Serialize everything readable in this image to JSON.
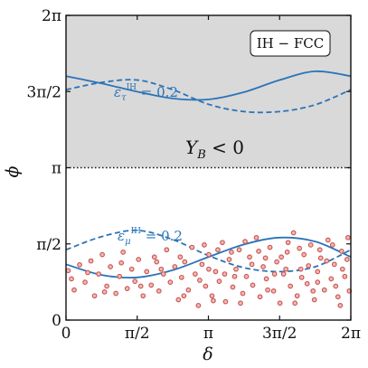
{
  "chart_data": {
    "type": "scatter",
    "title": "",
    "xlabel": "δ",
    "ylabel": "ϕ",
    "xlim": [
      0,
      6.2832
    ],
    "ylim": [
      0,
      6.2832
    ],
    "x_ticks": [
      {
        "value": 0,
        "label": "0"
      },
      {
        "value": 1.5708,
        "label": "π/2"
      },
      {
        "value": 3.1416,
        "label": "π"
      },
      {
        "value": 4.7124,
        "label": "3π/2"
      },
      {
        "value": 6.2832,
        "label": "2π"
      }
    ],
    "y_ticks": [
      {
        "value": 0,
        "label": "0"
      },
      {
        "value": 1.5708,
        "label": "π/2"
      },
      {
        "value": 3.1416,
        "label": "π"
      },
      {
        "value": 4.7124,
        "label": "3π/2"
      },
      {
        "value": 6.2832,
        "label": "2π"
      }
    ],
    "legend_box": "IH − FCC",
    "region_label": "Y_B < 0",
    "shaded_region": {
      "y_from": 3.1416,
      "y_to": 6.2832,
      "color": "#d9d9d9"
    },
    "boundary_line": {
      "y": 3.1416,
      "style": "dotted"
    },
    "annotations": [
      {
        "text": "ε_τ^IH = 0.2",
        "x": 1.05,
        "y": 4.65
      },
      {
        "text": "ε_μ^IH = 0.2",
        "x": 1.05,
        "y": 1.75
      }
    ],
    "series": [
      {
        "label": "ε_τ upper solid",
        "style": "solid",
        "color": "#2a73b8",
        "x": [
          0,
          0.7854,
          1.5708,
          2.3562,
          3.1416,
          3.927,
          4.7124,
          5.4978,
          6.2832
        ],
        "y": [
          5.03,
          4.88,
          4.71,
          4.57,
          4.55,
          4.7,
          4.95,
          5.13,
          5.03
        ]
      },
      {
        "label": "ε_τ lower dashed",
        "style": "dashed",
        "color": "#2a73b8",
        "x": [
          0,
          0.7854,
          1.5708,
          2.3562,
          3.1416,
          3.927,
          4.7124,
          5.4978,
          6.2832
        ],
        "y": [
          4.75,
          4.9,
          4.95,
          4.75,
          4.45,
          4.3,
          4.3,
          4.44,
          4.75
        ]
      },
      {
        "label": "ε_μ solid",
        "style": "solid",
        "color": "#2a73b8",
        "x": [
          0,
          0.7854,
          1.5708,
          2.3562,
          3.1416,
          3.927,
          4.7124,
          5.4978,
          6.2832
        ],
        "y": [
          1.15,
          0.93,
          0.88,
          1.03,
          1.3,
          1.56,
          1.7,
          1.62,
          1.3
        ]
      },
      {
        "label": "ε_μ dashed",
        "style": "dashed",
        "color": "#2a73b8",
        "x": [
          0,
          0.7854,
          1.5708,
          2.3562,
          3.1416,
          3.927,
          4.7124,
          5.4978,
          6.2832
        ],
        "y": [
          1.45,
          1.72,
          1.85,
          1.66,
          1.33,
          1.08,
          1.0,
          1.1,
          1.45
        ]
      },
      {
        "label": "points",
        "style": "markers",
        "color": "#c9524f",
        "points": [
          [
            0.05,
            1.02
          ],
          [
            0.18,
            0.62
          ],
          [
            0.3,
            1.14
          ],
          [
            0.42,
            0.78
          ],
          [
            0.55,
            1.22
          ],
          [
            0.63,
            0.5
          ],
          [
            0.72,
            0.95
          ],
          [
            0.8,
            1.35
          ],
          [
            0.9,
            0.7
          ],
          [
            0.98,
            1.1
          ],
          [
            1.1,
            0.55
          ],
          [
            1.18,
            0.9
          ],
          [
            1.26,
            1.4
          ],
          [
            1.35,
            0.65
          ],
          [
            1.45,
            1.05
          ],
          [
            1.52,
            0.8
          ],
          [
            1.6,
            1.25
          ],
          [
            1.7,
            0.5
          ],
          [
            1.78,
            1.0
          ],
          [
            1.88,
            0.72
          ],
          [
            1.95,
            1.3
          ],
          [
            2.05,
            0.6
          ],
          [
            2.15,
            0.95
          ],
          [
            2.22,
            1.45
          ],
          [
            2.3,
            0.78
          ],
          [
            2.4,
            1.1
          ],
          [
            2.48,
            0.42
          ],
          [
            2.55,
            0.88
          ],
          [
            2.62,
            1.2
          ],
          [
            2.7,
            0.62
          ],
          [
            2.78,
            1.5
          ],
          [
            2.85,
            0.95
          ],
          [
            2.92,
            0.3
          ],
          [
            3.0,
            1.15
          ],
          [
            3.08,
            0.7
          ],
          [
            3.15,
            1.35
          ],
          [
            3.22,
            0.5
          ],
          [
            3.3,
            1.0
          ],
          [
            3.38,
            0.8
          ],
          [
            3.45,
            1.6
          ],
          [
            3.52,
            0.38
          ],
          [
            3.6,
            1.25
          ],
          [
            3.68,
            0.68
          ],
          [
            3.75,
            1.05
          ],
          [
            3.82,
            1.45
          ],
          [
            3.9,
            0.55
          ],
          [
            3.98,
            0.9
          ],
          [
            4.05,
            1.3
          ],
          [
            4.12,
            0.72
          ],
          [
            4.2,
            1.7
          ],
          [
            4.28,
            0.48
          ],
          [
            4.35,
            1.1
          ],
          [
            4.42,
            0.85
          ],
          [
            4.5,
            1.5
          ],
          [
            4.58,
            0.6
          ],
          [
            4.65,
            1.2
          ],
          [
            4.72,
            0.35
          ],
          [
            4.8,
            0.95
          ],
          [
            4.88,
            1.4
          ],
          [
            4.95,
            0.7
          ],
          [
            5.02,
            1.8
          ],
          [
            5.1,
            0.5
          ],
          [
            5.18,
            1.05
          ],
          [
            5.25,
            1.35
          ],
          [
            5.32,
            0.75
          ],
          [
            5.4,
            1.55
          ],
          [
            5.48,
            0.42
          ],
          [
            5.55,
            1.0
          ],
          [
            5.62,
            1.28
          ],
          [
            5.7,
            0.62
          ],
          [
            5.78,
            1.65
          ],
          [
            5.85,
            0.85
          ],
          [
            5.92,
            1.15
          ],
          [
            6.0,
            0.48
          ],
          [
            6.08,
            1.42
          ],
          [
            6.15,
            0.9
          ],
          [
            6.22,
            1.7
          ],
          [
            6.25,
            0.6
          ],
          [
            0.12,
            0.85
          ],
          [
            0.48,
            0.98
          ],
          [
            0.85,
            0.58
          ],
          [
            1.22,
            1.18
          ],
          [
            1.65,
            0.7
          ],
          [
            2.1,
            1.05
          ],
          [
            2.52,
            1.3
          ],
          [
            2.95,
            0.82
          ],
          [
            3.35,
            1.45
          ],
          [
            3.72,
            0.9
          ],
          [
            4.1,
            1.15
          ],
          [
            4.45,
            0.62
          ],
          [
            4.85,
            1.05
          ],
          [
            5.2,
            0.88
          ],
          [
            5.6,
            1.45
          ],
          [
            5.95,
            0.7
          ],
          [
            3.05,
            1.55
          ],
          [
            3.5,
            0.95
          ],
          [
            3.95,
            1.62
          ],
          [
            4.4,
            1.28
          ],
          [
            4.9,
            1.6
          ],
          [
            5.35,
            1.12
          ],
          [
            5.75,
            1.22
          ],
          [
            6.1,
            1.05
          ],
          [
            2.0,
            1.2
          ],
          [
            2.6,
            0.5
          ],
          [
            3.25,
            0.4
          ],
          [
            3.85,
            0.35
          ],
          [
            4.6,
            0.95
          ],
          [
            5.05,
            0.35
          ],
          [
            5.45,
            0.6
          ],
          [
            6.05,
            0.3
          ],
          [
            3.15,
            1.05
          ],
          [
            3.65,
            1.4
          ],
          [
            4.25,
            1.42
          ],
          [
            4.75,
            1.3
          ],
          [
            5.15,
            1.48
          ],
          [
            5.55,
            0.78
          ],
          [
            5.88,
            1.55
          ],
          [
            6.2,
            1.25
          ]
        ]
      }
    ]
  }
}
